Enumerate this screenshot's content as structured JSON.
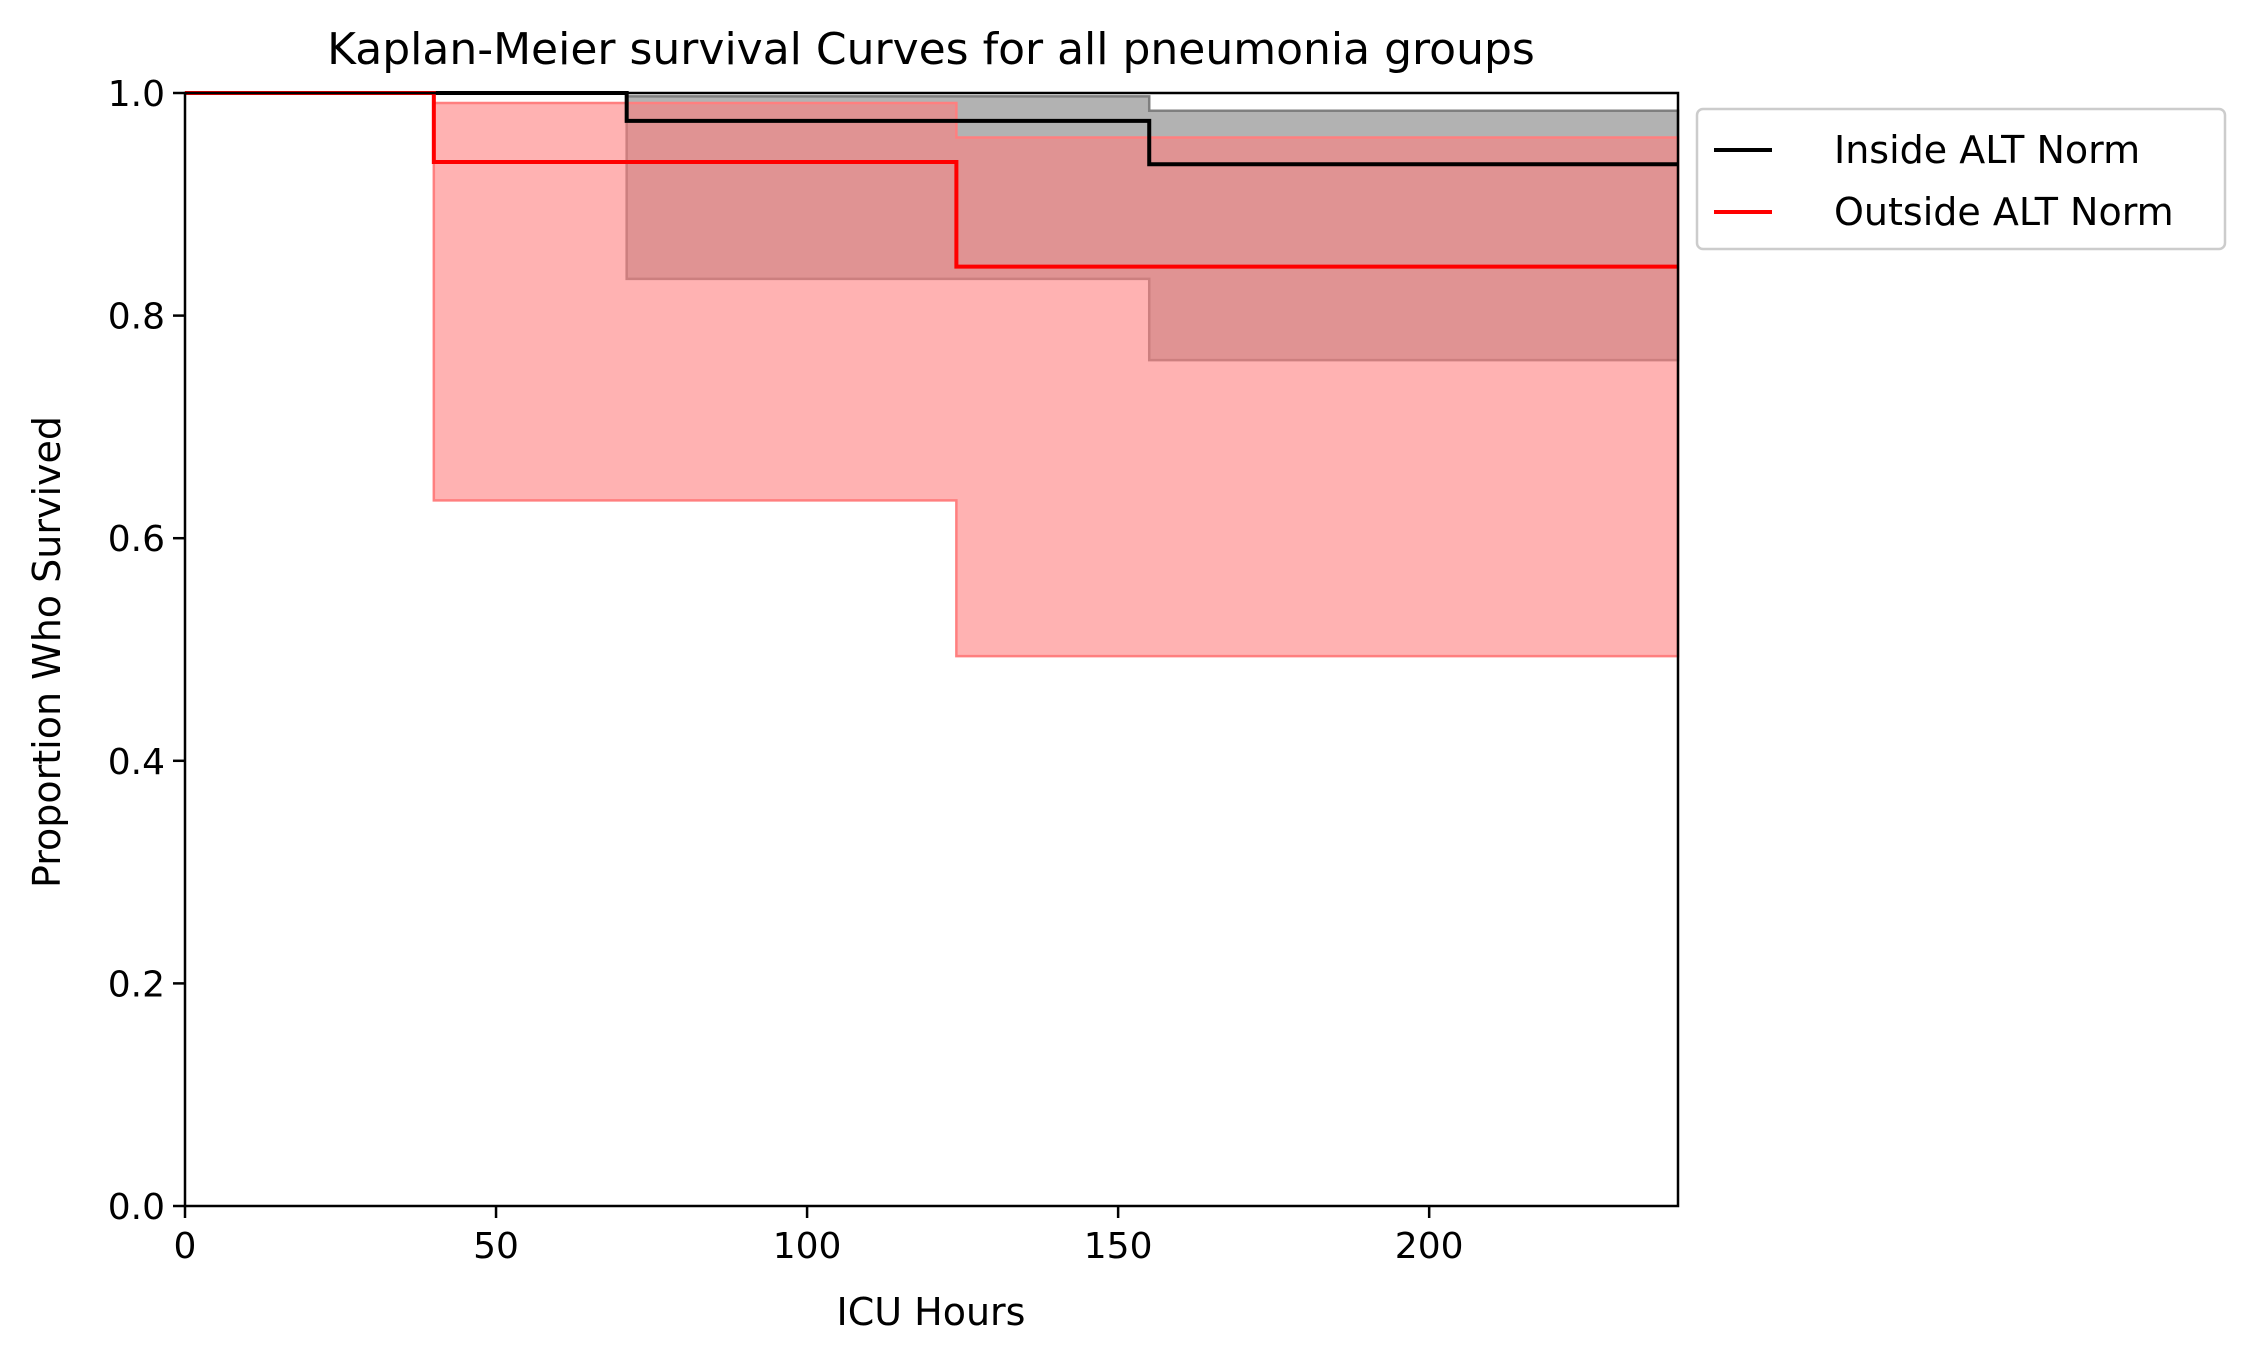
{
  "chart_data": {
    "type": "line",
    "title": "Kaplan-Meier survival Curves for all pneumonia groups",
    "xlabel": "ICU Hours",
    "ylabel": "Proportion Who Survived",
    "xlim": [
      0,
      240
    ],
    "ylim": [
      0,
      1.0
    ],
    "xticks": [
      0,
      50,
      100,
      150,
      200
    ],
    "yticks": [
      0.0,
      0.2,
      0.4,
      0.6,
      0.8,
      1.0
    ],
    "xtick_labels": [
      "0",
      "50",
      "100",
      "150",
      "200"
    ],
    "ytick_labels": [
      "0.0",
      "0.2",
      "0.4",
      "0.6",
      "0.8",
      "1.0"
    ],
    "grid": false,
    "legend_position": "outside-upper-right",
    "series": [
      {
        "name": "Inside ALT Norm",
        "color": "#000000",
        "ci_color": "#7f7f7f",
        "steps": [
          {
            "x": 0,
            "y": 1.0,
            "lo": 1.0,
            "hi": 1.0
          },
          {
            "x": 71,
            "y": 0.975,
            "lo": 0.833,
            "hi": 0.997
          },
          {
            "x": 155,
            "y": 0.936,
            "lo": 0.76,
            "hi": 0.984
          },
          {
            "x": 240,
            "y": 0.936,
            "lo": 0.76,
            "hi": 0.984
          }
        ]
      },
      {
        "name": "Outside ALT Norm",
        "color": "#ff0000",
        "ci_color": "#ff7f7f",
        "steps": [
          {
            "x": 0,
            "y": 1.0,
            "lo": 1.0,
            "hi": 1.0
          },
          {
            "x": 40,
            "y": 0.938,
            "lo": 0.634,
            "hi": 0.991
          },
          {
            "x": 124,
            "y": 0.844,
            "lo": 0.494,
            "hi": 0.96
          },
          {
            "x": 240,
            "y": 0.844,
            "lo": 0.494,
            "hi": 0.96
          }
        ]
      }
    ]
  }
}
